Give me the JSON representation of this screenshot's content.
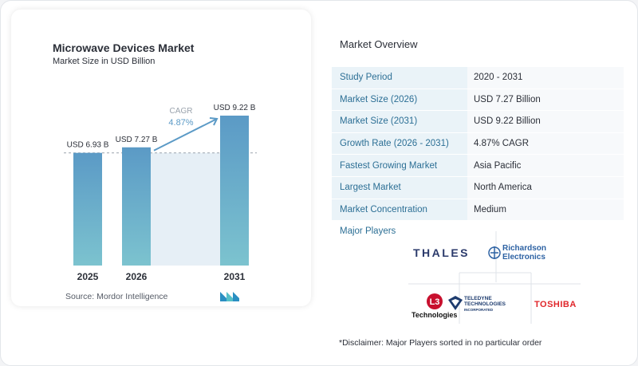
{
  "left_card": {
    "title": "Microwave Devices Market",
    "subtitle": "Market Size in USD Billion",
    "source": "Source:  Mordor Intelligence"
  },
  "chart_data": {
    "type": "bar",
    "title": "Microwave Devices Market",
    "subtitle": "Market Size in USD Billion",
    "categories": [
      "2025",
      "2026",
      "2031"
    ],
    "values": [
      6.93,
      7.27,
      9.22
    ],
    "data_labels": [
      "USD 6.93 B",
      "USD 7.27 B",
      "USD 9.22 B"
    ],
    "cagr_label": "CAGR",
    "cagr_value": "4.87%",
    "ylim": [
      0,
      9.22
    ],
    "grid": false,
    "reference_line": 6.93,
    "bar_color_top": "#5b9ac6",
    "bar_color_bottom": "#7cc3cf"
  },
  "overview": {
    "title": "Market Overview",
    "rows": [
      {
        "key": "Study Period",
        "value": "2020 - 2031"
      },
      {
        "key": "Market Size (2026)",
        "value": "USD 7.27 Billion"
      },
      {
        "key": "Market Size (2031)",
        "value": "USD 9.22 Billion"
      },
      {
        "key": "Growth Rate (2026 - 2031)",
        "value": "4.87% CAGR"
      },
      {
        "key": "Fastest Growing Market",
        "value": "Asia Pacific"
      },
      {
        "key": "Largest Market",
        "value": "North America"
      },
      {
        "key": "Market Concentration",
        "value": "Medium"
      }
    ]
  },
  "players": {
    "title": "Major Players",
    "logos": [
      "THALES",
      "Richardson Electronics",
      "L3 Technologies",
      "TELEDYNE TECHNOLOGIES INCORPORATED",
      "TOSHIBA"
    ],
    "thales": "THALES",
    "richardson_1": "Richardson",
    "richardson_2": "Electronics",
    "l3_mark": "L3",
    "l3_text": "Technologies",
    "teledyne_1": "TELEDYNE",
    "teledyne_2": "TECHNOLOGIES",
    "teledyne_3": "INCORPORATED",
    "toshiba": "TOSHIBA"
  },
  "disclaimer": "*Disclaimer: Major Players sorted in no particular order"
}
